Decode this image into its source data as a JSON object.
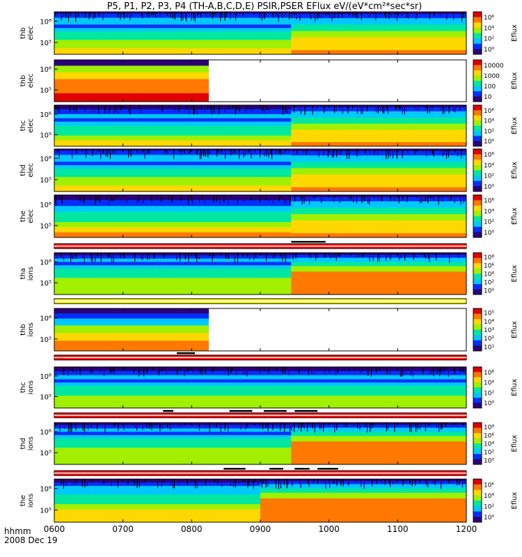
{
  "title": "P5, P1, P2, P3, P4 (TH-A,B,C,D,E) PSIR,PSER EFlux eV/(eV*cm²*sec*sr)",
  "footer": {
    "time_label": "hhmm",
    "date_label": "2008 Dec 19"
  },
  "colors": {
    "spectrogram_palette": [
      "#2b0078",
      "#0030ff",
      "#00c8ff",
      "#00e8a0",
      "#a0f000",
      "#ffd800",
      "#ff7800",
      "#e00000"
    ],
    "bar_red": "#ff0000",
    "bar_yellow": "#ffff00",
    "bar_mark": "#000000"
  },
  "chart_data": {
    "type": "heatmap",
    "x_ticks": [
      "0600",
      "0700",
      "0800",
      "0900",
      "1000",
      "1100",
      "1200"
    ],
    "xlim": [
      "06:00",
      "12:00"
    ],
    "panels": [
      {
        "probe": "thb_elec",
        "label_top": "thb",
        "label_bottom": "elec",
        "y_ticks": [
          "10⁶",
          "10⁵"
        ],
        "cbar_label": "Eflux",
        "cbar_ticks": [
          "10⁶",
          "10⁴",
          "10²",
          "10⁰"
        ],
        "data_end": "12:00",
        "change_at": "09:27",
        "style": "elec_a"
      },
      {
        "probe": "thb_elec2",
        "label_top": "thb",
        "label_bottom": "elec",
        "y_ticks": [
          "10⁶",
          "10⁵"
        ],
        "cbar_label": "Eflux",
        "cbar_ticks": [
          "10000",
          "1000",
          "100",
          "10"
        ],
        "data_end": "08:15",
        "change_at": null,
        "style": "bands_sat"
      },
      {
        "probe": "thc_elec",
        "label_top": "thc",
        "label_bottom": "elec",
        "y_ticks": [
          "10⁶",
          "10⁵"
        ],
        "cbar_label": "Eflux",
        "cbar_ticks": [
          "10⁶",
          "10⁴",
          "10²",
          "10⁰"
        ],
        "data_end": "12:00",
        "change_at": "09:27",
        "style": "elec_b"
      },
      {
        "probe": "thd_elec",
        "label_top": "thd",
        "label_bottom": "elec",
        "y_ticks": [
          "10⁶",
          "10⁵"
        ],
        "cbar_label": "Eflux",
        "cbar_ticks": [
          "10⁶",
          "10⁴",
          "10²",
          "10⁰"
        ],
        "data_end": "12:00",
        "change_at": "09:27",
        "style": "elec_a"
      },
      {
        "probe": "the_elec",
        "label_top": "the",
        "label_bottom": "elec",
        "y_ticks": [
          "10⁶",
          "10⁵"
        ],
        "cbar_label": "Eflux",
        "cbar_ticks": [
          "10⁶",
          "10⁴",
          "10²",
          "10⁰"
        ],
        "data_end": "12:00",
        "change_at": "09:27",
        "style": "elec_c"
      },
      {
        "probe": "tha_ions",
        "label_top": "tha",
        "label_bottom": "ions",
        "y_ticks": [
          "10⁶",
          "10⁵"
        ],
        "cbar_label": "Eflux",
        "cbar_ticks": [
          "10⁸",
          "10⁶",
          "10⁴",
          "10²",
          "10⁰"
        ],
        "data_end": "12:00",
        "change_at": "09:27",
        "style": "ions_a"
      },
      {
        "probe": "thb_ions",
        "label_top": "thb",
        "label_bottom": "ions",
        "y_ticks": [
          "10⁶",
          "10⁵"
        ],
        "cbar_label": "Eflux",
        "cbar_ticks": [
          "10⁵",
          "10⁴",
          "10³",
          "10²",
          "10¹"
        ],
        "data_end": "08:15",
        "change_at": null,
        "style": "ions_b"
      },
      {
        "probe": "thc_ions",
        "label_top": "thc",
        "label_bottom": "ions",
        "y_ticks": [
          "10⁶",
          "10⁵"
        ],
        "cbar_label": "Eflux",
        "cbar_ticks": [
          "10⁶",
          "10⁴",
          "10²",
          "10⁰"
        ],
        "data_end": "12:00",
        "change_at": null,
        "style": "ions_c"
      },
      {
        "probe": "thd_ions",
        "label_top": "thd",
        "label_bottom": "ions",
        "y_ticks": [
          "10⁶",
          "10⁵"
        ],
        "cbar_label": "Eflux",
        "cbar_ticks": [
          "10⁸",
          "10⁶",
          "10⁴",
          "10²",
          "10⁰"
        ],
        "data_end": "12:00",
        "change_at": "09:27",
        "style": "ions_a"
      },
      {
        "probe": "the_ions",
        "label_top": "the",
        "label_bottom": "ions",
        "y_ticks": [
          "10⁶",
          "10⁵"
        ],
        "cbar_label": "Eflux",
        "cbar_ticks": [
          "10⁶",
          "10⁴",
          "10²",
          "10⁰"
        ],
        "data_end": "12:00",
        "change_at": "09:00",
        "style": "ions_d"
      }
    ],
    "mode_bars": [
      {
        "after_panel": 4,
        "color": "red",
        "marks": [
          [
            "09:27",
            "09:57"
          ]
        ]
      },
      {
        "after_panel": 5,
        "color": "yellow",
        "marks": []
      },
      {
        "after_panel": 6,
        "color": "red",
        "marks": [
          [
            "07:47",
            "08:03"
          ]
        ]
      },
      {
        "after_panel": 7,
        "color": "red",
        "marks": [
          [
            "07:35",
            "07:44"
          ],
          [
            "08:33",
            "08:53"
          ],
          [
            "09:03",
            "09:23"
          ],
          [
            "09:30",
            "09:50"
          ]
        ]
      },
      {
        "after_panel": 8,
        "color": "red",
        "marks": [
          [
            "08:28",
            "08:47"
          ],
          [
            "09:08",
            "09:20"
          ],
          [
            "09:30",
            "09:43"
          ],
          [
            "09:50",
            "10:08"
          ]
        ]
      }
    ]
  }
}
